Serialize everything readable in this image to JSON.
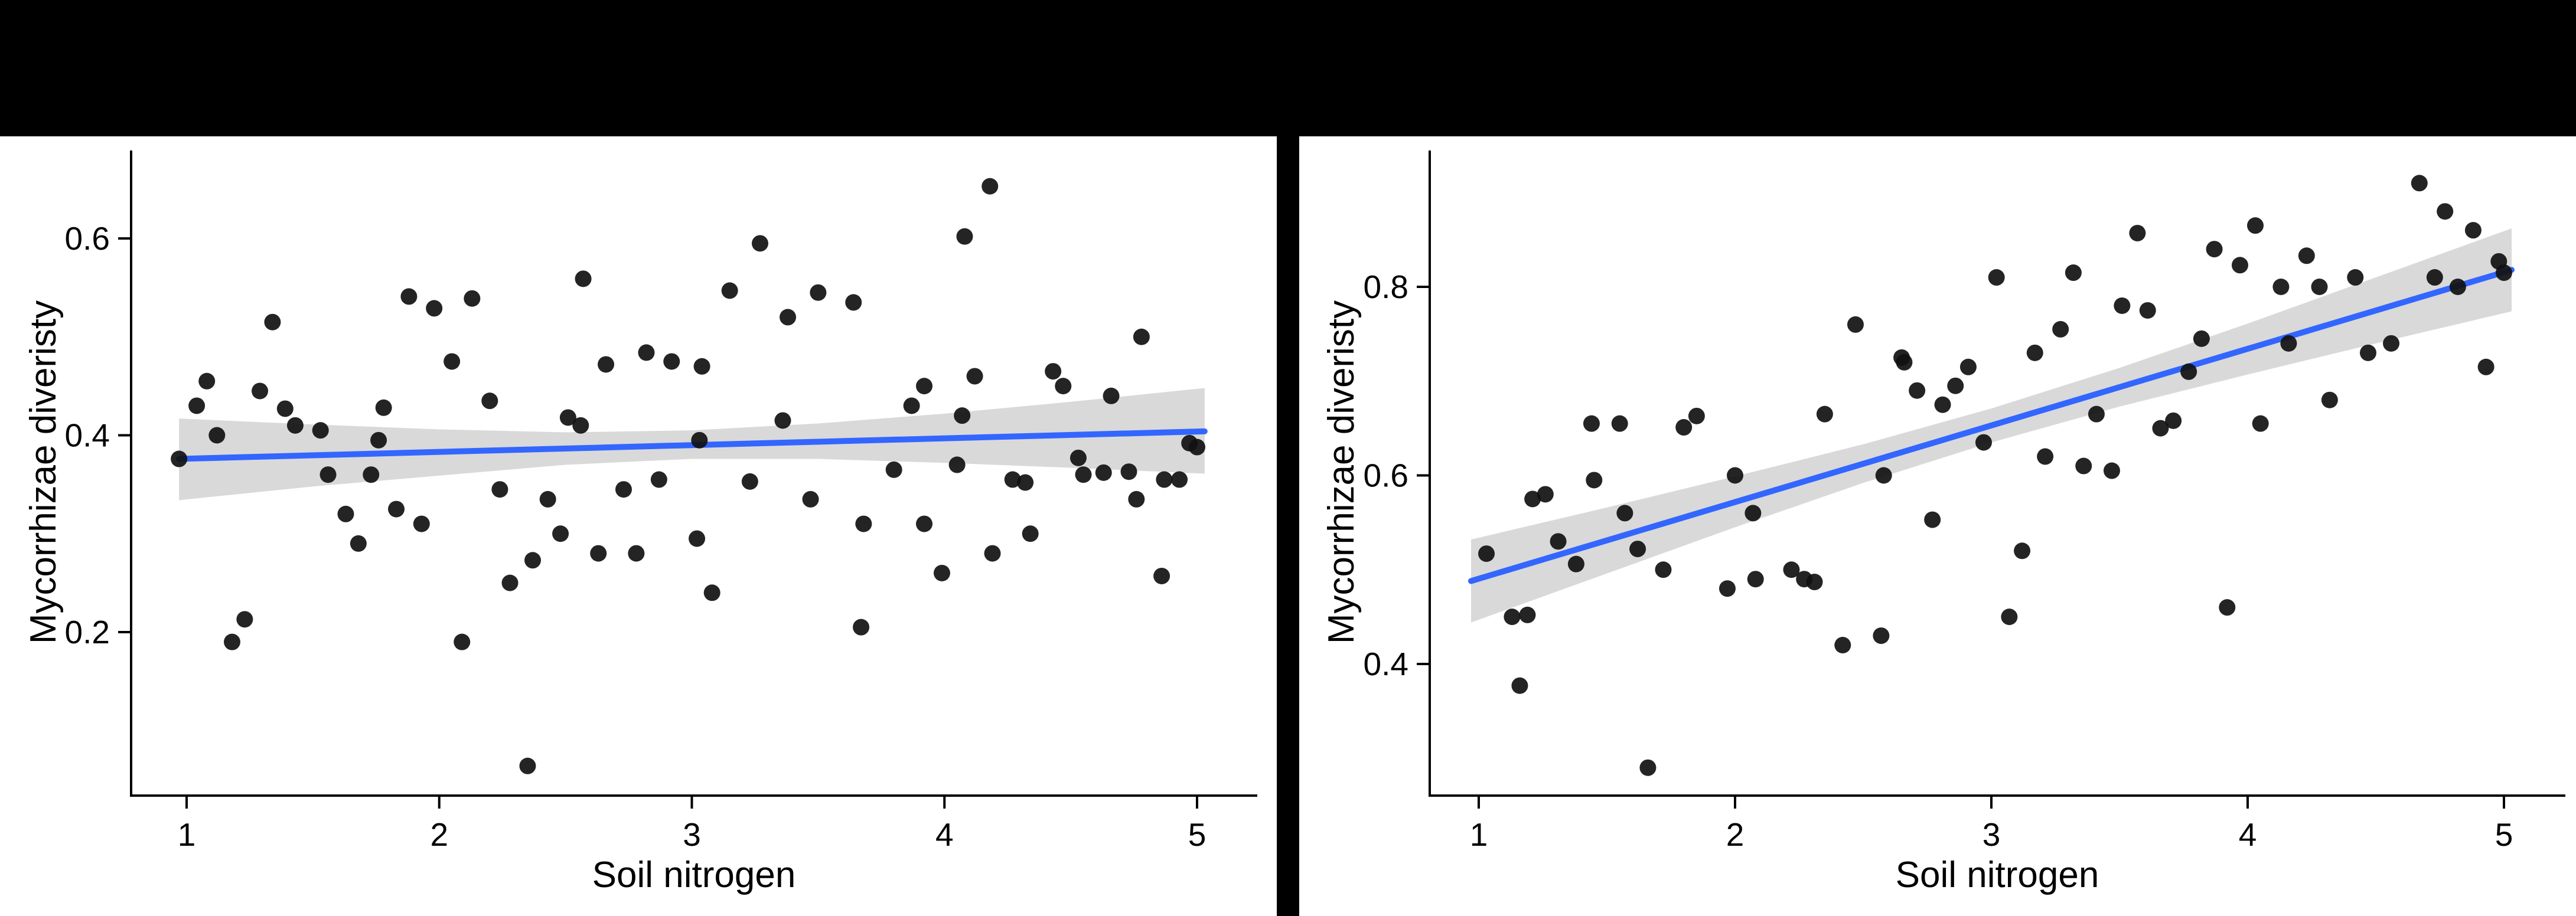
{
  "figure": {
    "background_color": "#ffffff",
    "top_bar_color": "#000000",
    "panel_divider_color": "#000000",
    "text_color": "#000000"
  },
  "chart_data": [
    {
      "type": "scatter",
      "panel": "left",
      "title": "",
      "xlabel": "Soil nitrogen",
      "ylabel": "Mycorrhizae diveristy",
      "xlim": [
        0.78,
        5.24
      ],
      "ylim": [
        0.03,
        0.7
      ],
      "grid": "off",
      "legend": "none",
      "x_tick_labels": [
        "1",
        "2",
        "3",
        "4",
        "5"
      ],
      "x_tick_values": [
        1,
        2,
        3,
        4,
        5
      ],
      "y_tick_labels": [
        "0.2",
        "0.4",
        "0.6"
      ],
      "y_tick_values": [
        0.2,
        0.4,
        0.6
      ],
      "point_color": "#111111",
      "smooth_line_color": "#3366FF",
      "ci_band_color": "#D9D9D9",
      "trend_line": {
        "x": [
          0.97,
          5.03
        ],
        "y": [
          0.376,
          0.404
        ]
      },
      "ci_band": {
        "x": [
          0.97,
          1.5,
          2.0,
          2.5,
          3.0,
          3.5,
          4.0,
          4.5,
          5.03
        ],
        "upper": [
          0.417,
          0.411,
          0.406,
          0.403,
          0.405,
          0.412,
          0.422,
          0.434,
          0.448
        ],
        "lower": [
          0.334,
          0.348,
          0.359,
          0.37,
          0.376,
          0.376,
          0.372,
          0.367,
          0.361
        ]
      },
      "points": [
        [
          0.97,
          0.376
        ],
        [
          1.04,
          0.43
        ],
        [
          1.08,
          0.455
        ],
        [
          1.12,
          0.4
        ],
        [
          1.18,
          0.19
        ],
        [
          1.23,
          0.213
        ],
        [
          1.29,
          0.445
        ],
        [
          1.34,
          0.515
        ],
        [
          1.39,
          0.427
        ],
        [
          1.43,
          0.41
        ],
        [
          1.53,
          0.405
        ],
        [
          1.56,
          0.36
        ],
        [
          1.63,
          0.32
        ],
        [
          1.68,
          0.29
        ],
        [
          1.73,
          0.36
        ],
        [
          1.76,
          0.395
        ],
        [
          1.78,
          0.428
        ],
        [
          1.83,
          0.325
        ],
        [
          1.88,
          0.541
        ],
        [
          1.93,
          0.31
        ],
        [
          1.98,
          0.529
        ],
        [
          2.05,
          0.475
        ],
        [
          2.09,
          0.19
        ],
        [
          2.13,
          0.539
        ],
        [
          2.2,
          0.435
        ],
        [
          2.24,
          0.345
        ],
        [
          2.28,
          0.25
        ],
        [
          2.35,
          0.064
        ],
        [
          2.37,
          0.273
        ],
        [
          2.43,
          0.335
        ],
        [
          2.48,
          0.3
        ],
        [
          2.51,
          0.418
        ],
        [
          2.56,
          0.41
        ],
        [
          2.57,
          0.559
        ],
        [
          2.63,
          0.28
        ],
        [
          2.66,
          0.472
        ],
        [
          2.73,
          0.345
        ],
        [
          2.78,
          0.28
        ],
        [
          2.82,
          0.484
        ],
        [
          2.87,
          0.355
        ],
        [
          2.92,
          0.475
        ],
        [
          3.02,
          0.295
        ],
        [
          3.03,
          0.395
        ],
        [
          3.04,
          0.47
        ],
        [
          3.08,
          0.24
        ],
        [
          3.15,
          0.547
        ],
        [
          3.23,
          0.353
        ],
        [
          3.27,
          0.595
        ],
        [
          3.36,
          0.415
        ],
        [
          3.38,
          0.52
        ],
        [
          3.47,
          0.335
        ],
        [
          3.5,
          0.545
        ],
        [
          3.64,
          0.535
        ],
        [
          3.67,
          0.205
        ],
        [
          3.68,
          0.31
        ],
        [
          3.8,
          0.365
        ],
        [
          3.87,
          0.43
        ],
        [
          3.92,
          0.31
        ],
        [
          3.92,
          0.45
        ],
        [
          3.99,
          0.26
        ],
        [
          4.05,
          0.37
        ],
        [
          4.07,
          0.42
        ],
        [
          4.08,
          0.602
        ],
        [
          4.12,
          0.46
        ],
        [
          4.18,
          0.653
        ],
        [
          4.19,
          0.28
        ],
        [
          4.27,
          0.355
        ],
        [
          4.32,
          0.352
        ],
        [
          4.34,
          0.3
        ],
        [
          4.43,
          0.465
        ],
        [
          4.47,
          0.45
        ],
        [
          4.53,
          0.377
        ],
        [
          4.55,
          0.36
        ],
        [
          4.63,
          0.362
        ],
        [
          4.66,
          0.44
        ],
        [
          4.73,
          0.363
        ],
        [
          4.76,
          0.335
        ],
        [
          4.78,
          0.5
        ],
        [
          4.86,
          0.257
        ],
        [
          4.87,
          0.355
        ],
        [
          4.93,
          0.355
        ],
        [
          4.97,
          0.392
        ],
        [
          5.0,
          0.388
        ]
      ]
    },
    {
      "type": "scatter",
      "panel": "right",
      "title": "",
      "xlabel": "Soil nitrogen",
      "ylabel": "Mycorrhizae diveristy",
      "xlim": [
        0.81,
        5.24
      ],
      "ylim": [
        0.26,
        0.95
      ],
      "grid": "off",
      "legend": "none",
      "x_tick_labels": [
        "1",
        "2",
        "3",
        "4",
        "5"
      ],
      "x_tick_values": [
        1,
        2,
        3,
        4,
        5
      ],
      "y_tick_labels": [
        "0.4",
        "0.6",
        "0.8"
      ],
      "y_tick_values": [
        0.4,
        0.6,
        0.8
      ],
      "point_color": "#111111",
      "smooth_line_color": "#3366FF",
      "ci_band_color": "#D9D9D9",
      "trend_line": {
        "x": [
          0.97,
          5.03
        ],
        "y": [
          0.488,
          0.818
        ]
      },
      "ci_band": {
        "x": [
          0.97,
          1.5,
          2.0,
          2.5,
          3.0,
          3.5,
          4.0,
          4.5,
          5.03
        ],
        "upper": [
          0.532,
          0.566,
          0.599,
          0.633,
          0.671,
          0.714,
          0.761,
          0.81,
          0.862
        ],
        "lower": [
          0.444,
          0.496,
          0.545,
          0.592,
          0.635,
          0.673,
          0.707,
          0.74,
          0.774
        ]
      },
      "points": [
        [
          1.03,
          0.517
        ],
        [
          1.13,
          0.45
        ],
        [
          1.16,
          0.377
        ],
        [
          1.19,
          0.452
        ],
        [
          1.21,
          0.575
        ],
        [
          1.26,
          0.58
        ],
        [
          1.31,
          0.53
        ],
        [
          1.38,
          0.506
        ],
        [
          1.44,
          0.655
        ],
        [
          1.45,
          0.595
        ],
        [
          1.55,
          0.655
        ],
        [
          1.57,
          0.56
        ],
        [
          1.62,
          0.522
        ],
        [
          1.66,
          0.29
        ],
        [
          1.72,
          0.5
        ],
        [
          1.8,
          0.651
        ],
        [
          1.85,
          0.663
        ],
        [
          1.97,
          0.48
        ],
        [
          2.0,
          0.6
        ],
        [
          2.07,
          0.56
        ],
        [
          2.08,
          0.49
        ],
        [
          2.22,
          0.5
        ],
        [
          2.27,
          0.49
        ],
        [
          2.31,
          0.487
        ],
        [
          2.35,
          0.665
        ],
        [
          2.42,
          0.42
        ],
        [
          2.47,
          0.76
        ],
        [
          2.57,
          0.43
        ],
        [
          2.58,
          0.6
        ],
        [
          2.65,
          0.725
        ],
        [
          2.66,
          0.72
        ],
        [
          2.71,
          0.69
        ],
        [
          2.77,
          0.553
        ],
        [
          2.81,
          0.675
        ],
        [
          2.86,
          0.695
        ],
        [
          2.91,
          0.715
        ],
        [
          2.97,
          0.635
        ],
        [
          3.02,
          0.81
        ],
        [
          3.07,
          0.45
        ],
        [
          3.12,
          0.52
        ],
        [
          3.17,
          0.73
        ],
        [
          3.21,
          0.62
        ],
        [
          3.27,
          0.755
        ],
        [
          3.32,
          0.815
        ],
        [
          3.36,
          0.61
        ],
        [
          3.41,
          0.665
        ],
        [
          3.47,
          0.605
        ],
        [
          3.51,
          0.78
        ],
        [
          3.57,
          0.857
        ],
        [
          3.61,
          0.775
        ],
        [
          3.66,
          0.65
        ],
        [
          3.71,
          0.658
        ],
        [
          3.77,
          0.71
        ],
        [
          3.82,
          0.745
        ],
        [
          3.87,
          0.84
        ],
        [
          3.92,
          0.46
        ],
        [
          3.97,
          0.823
        ],
        [
          4.03,
          0.865
        ],
        [
          4.05,
          0.655
        ],
        [
          4.13,
          0.8
        ],
        [
          4.16,
          0.74
        ],
        [
          4.23,
          0.833
        ],
        [
          4.28,
          0.8
        ],
        [
          4.32,
          0.68
        ],
        [
          4.42,
          0.81
        ],
        [
          4.47,
          0.73
        ],
        [
          4.56,
          0.74
        ],
        [
          4.67,
          0.91
        ],
        [
          4.73,
          0.81
        ],
        [
          4.77,
          0.88
        ],
        [
          4.82,
          0.8
        ],
        [
          4.88,
          0.86
        ],
        [
          4.93,
          0.715
        ],
        [
          4.98,
          0.827
        ],
        [
          5.0,
          0.815
        ]
      ]
    }
  ]
}
